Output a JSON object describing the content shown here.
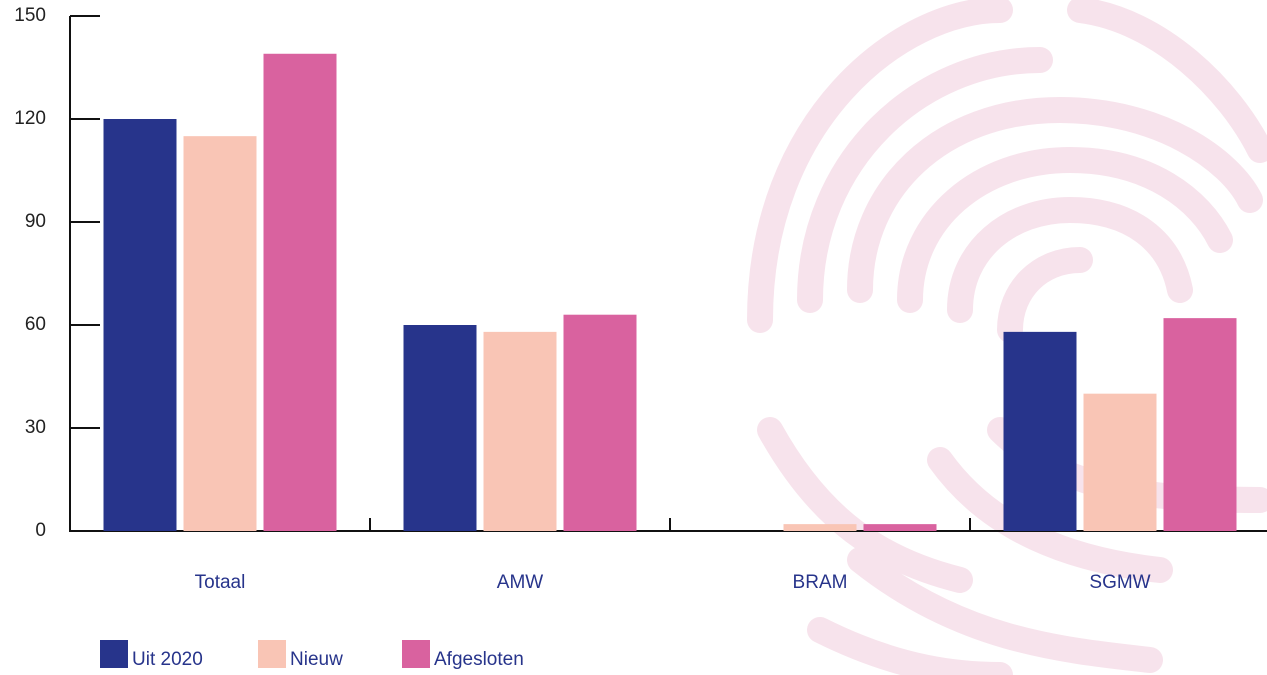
{
  "chart_data": {
    "type": "bar",
    "categories": [
      "Totaal",
      "AMW",
      "BRAM",
      "SGMW"
    ],
    "series": [
      {
        "name": "Uit 2020",
        "color": "#27348b",
        "values": [
          120,
          60,
          0,
          58
        ]
      },
      {
        "name": "Nieuw",
        "color": "#f9c5b5",
        "values": [
          115,
          58,
          2,
          40
        ]
      },
      {
        "name": "Afgesloten",
        "color": "#d9629f",
        "values": [
          139,
          63,
          2,
          62
        ]
      }
    ],
    "ylim": [
      0,
      150
    ],
    "yticks": [
      0,
      30,
      60,
      90,
      120,
      150
    ],
    "grid": false
  }
}
